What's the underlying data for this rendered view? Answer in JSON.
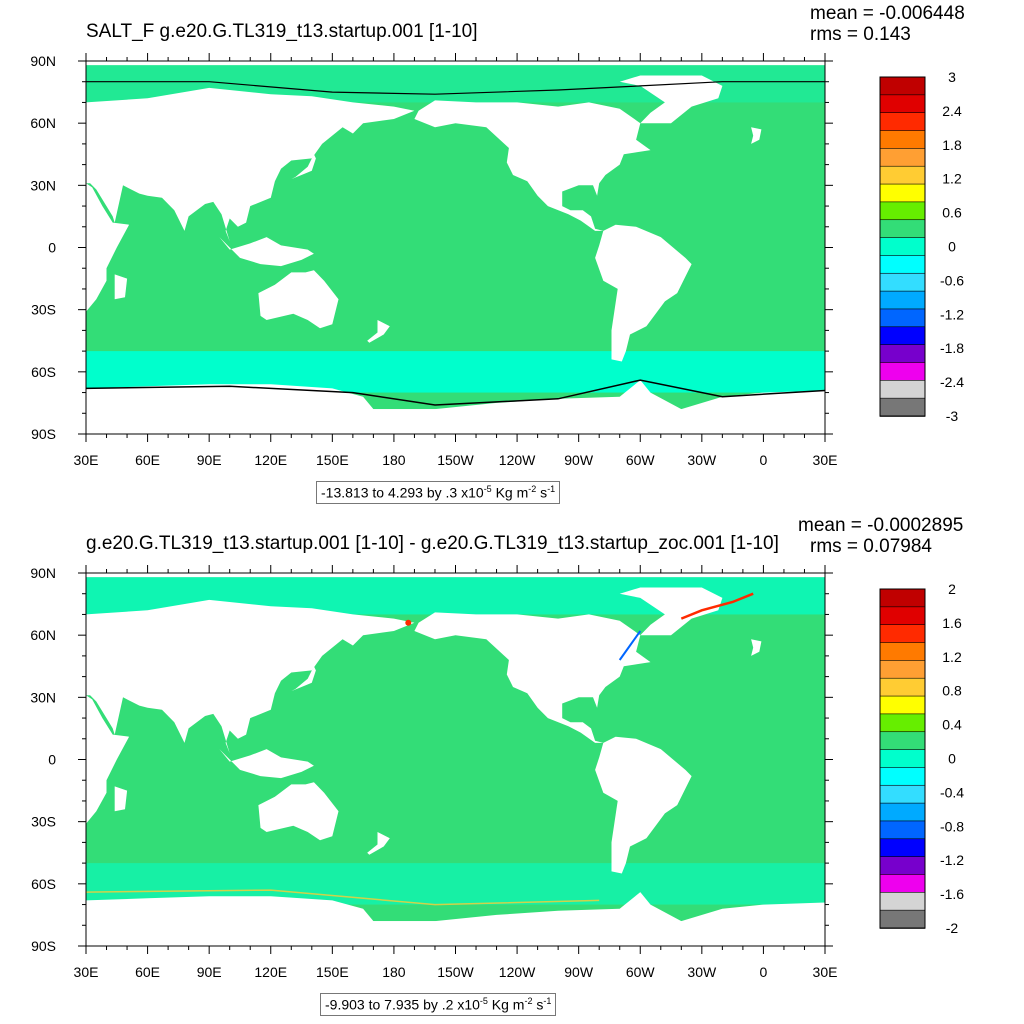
{
  "panels": [
    {
      "title": "SALT_F g.e20.G.TL319_t13.startup.001 [1-10]",
      "mean_text": "mean = -0.006448",
      "rms_text": "rms = 0.143",
      "subtitle_prefix": "-13.813 to 4.293 by .3 x10",
      "subtitle_exp": "-5",
      "subtitle_units": " Kg m",
      "subtitle_m_exp": "-2",
      "subtitle_s": " s",
      "subtitle_s_exp": "-1",
      "x_ticks": [
        "30E",
        "60E",
        "90E",
        "120E",
        "150E",
        "180",
        "150W",
        "120W",
        "90W",
        "60W",
        "30W",
        "0",
        "30E"
      ],
      "y_ticks": [
        "90N",
        "60N",
        "30N",
        "0",
        "30S",
        "60S",
        "90S"
      ],
      "colorbar_labels": [
        "3",
        "2.4",
        "1.8",
        "1.2",
        "0.6",
        "0",
        "-0.6",
        "-1.2",
        "-1.8",
        "-2.4",
        "-3"
      ],
      "colorbar_colors": [
        "#c00000",
        "#e00000",
        "#ff2a00",
        "#ff7a00",
        "#ff9f33",
        "#ffcc33",
        "#ffff00",
        "#66ee00",
        "#33dd77",
        "#00ffcc",
        "#00ffff",
        "#33ddff",
        "#00aaff",
        "#0066ff",
        "#0000ff",
        "#7700cc",
        "#ee00ee",
        "#d4d4d4",
        "#777777"
      ]
    },
    {
      "title": "g.e20.G.TL319_t13.startup.001 [1-10] - g.e20.G.TL319_t13.startup_zoc.001 [1-10]",
      "mean_text": "mean = -0.0002895",
      "rms_text": "rms = 0.07984",
      "subtitle_prefix": "-9.903 to 7.935 by .2 x10",
      "subtitle_exp": "-5",
      "subtitle_units": " Kg m",
      "subtitle_m_exp": "-2",
      "subtitle_s": " s",
      "subtitle_s_exp": "-1",
      "x_ticks": [
        "30E",
        "60E",
        "90E",
        "120E",
        "150E",
        "180",
        "150W",
        "120W",
        "90W",
        "60W",
        "30W",
        "0",
        "30E"
      ],
      "y_ticks": [
        "90N",
        "60N",
        "30N",
        "0",
        "30S",
        "60S",
        "90S"
      ],
      "colorbar_labels": [
        "2",
        "1.6",
        "1.2",
        "0.8",
        "0.4",
        "0",
        "-0.4",
        "-0.8",
        "-1.2",
        "-1.6",
        "-2"
      ],
      "colorbar_colors": [
        "#c00000",
        "#e00000",
        "#ff2a00",
        "#ff7a00",
        "#ff9f33",
        "#ffcc33",
        "#ffff00",
        "#66ee00",
        "#33dd77",
        "#00ffcc",
        "#00ffff",
        "#33ddff",
        "#00aaff",
        "#0066ff",
        "#0000ff",
        "#7700cc",
        "#ee00ee",
        "#d4d4d4",
        "#777777"
      ]
    }
  ],
  "chart_data": [
    {
      "type": "heatmap",
      "title": "SALT_F g.e20.G.TL319_t13.startup.001 [1-10]",
      "variable": "SALT_F",
      "stats": {
        "mean": -0.006448,
        "rms": 0.143
      },
      "contour_range": {
        "min": -13.813,
        "max": 4.293,
        "interval": 0.3,
        "scale": "x10^-5",
        "units": "Kg m^-2 s^-1"
      },
      "x_ticks": [
        "30E",
        "60E",
        "90E",
        "120E",
        "150E",
        "180",
        "150W",
        "120W",
        "90W",
        "60W",
        "30W",
        "0",
        "30E"
      ],
      "y_ticks": [
        "90N",
        "60N",
        "30N",
        "0",
        "30S",
        "60S",
        "90S"
      ],
      "colorbar": {
        "min": -3,
        "max": 3,
        "labels": [
          "3",
          "2.4",
          "1.8",
          "1.2",
          "0.6",
          "0",
          "-0.6",
          "-1.2",
          "-1.8",
          "-2.4",
          "-3"
        ]
      },
      "dominant_ocean_value": 0
    },
    {
      "type": "heatmap",
      "title": "g.e20.G.TL319_t13.startup.001 [1-10] - g.e20.G.TL319_t13.startup_zoc.001 [1-10]",
      "stats": {
        "mean": -0.0002895,
        "rms": 0.07984
      },
      "contour_range": {
        "min": -9.903,
        "max": 7.935,
        "interval": 0.2,
        "scale": "x10^-5",
        "units": "Kg m^-2 s^-1"
      },
      "x_ticks": [
        "30E",
        "60E",
        "90E",
        "120E",
        "150E",
        "180",
        "150W",
        "120W",
        "90W",
        "60W",
        "30W",
        "0",
        "30E"
      ],
      "y_ticks": [
        "90N",
        "60N",
        "30N",
        "0",
        "30S",
        "60S",
        "90S"
      ],
      "colorbar": {
        "min": -2,
        "max": 2,
        "labels": [
          "2",
          "1.6",
          "1.2",
          "0.8",
          "0.4",
          "0",
          "-0.4",
          "-0.8",
          "-1.2",
          "-1.6",
          "-2"
        ]
      },
      "dominant_ocean_value": 0
    }
  ]
}
